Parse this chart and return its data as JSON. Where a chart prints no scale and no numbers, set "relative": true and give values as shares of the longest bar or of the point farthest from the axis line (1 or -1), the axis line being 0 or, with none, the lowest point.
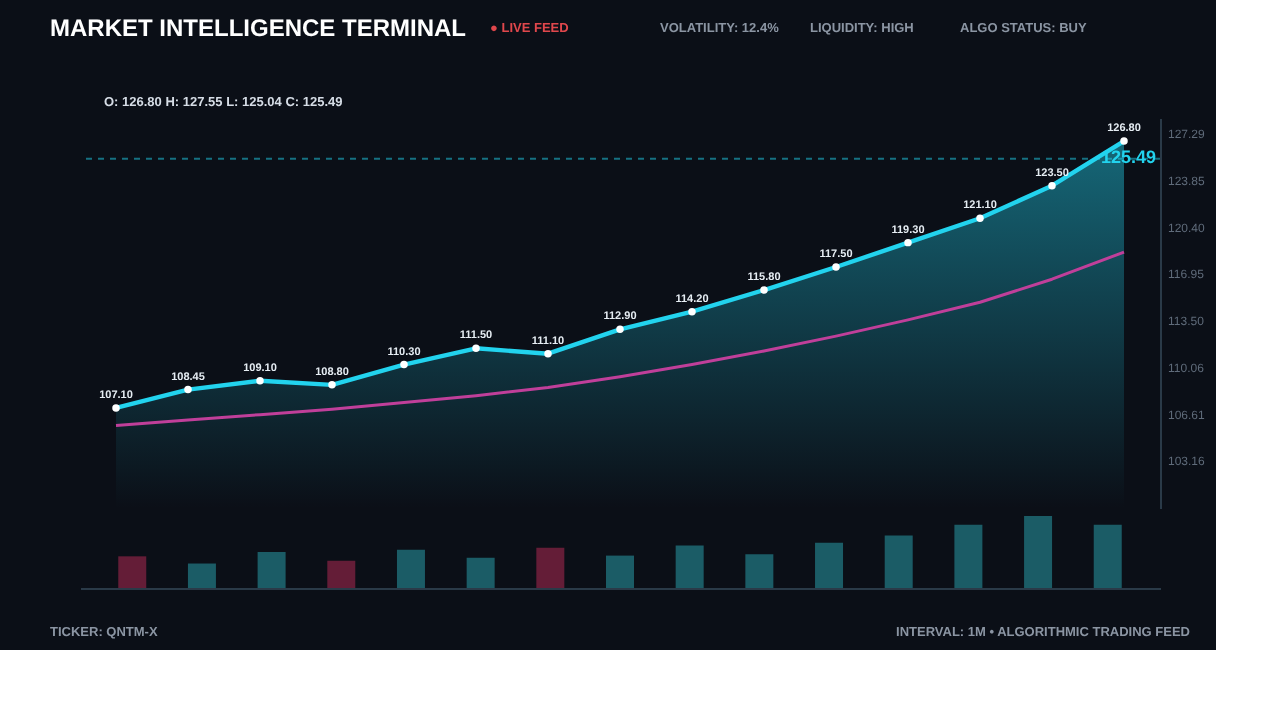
{
  "chart_data": [
    {
      "type": "line",
      "title": "MARKET INTELLIGENCE TERMINAL",
      "annotations": [
        "● LIVE FEED",
        "VOLATILITY: 12.4%",
        "LIQUIDITY: HIGH",
        "ALGO STATUS: BUY",
        "O: 126.80   H: 127.55   L: 125.04   C: 125.49",
        "TICKER: QNTM-X",
        "INTERVAL: 1M • ALGORITHMIC TRADING FEED"
      ],
      "categories": [
        null,
        null,
        null,
        null,
        null,
        null,
        null,
        null,
        null,
        null,
        null,
        null,
        null,
        null,
        null
      ],
      "series": [
        {
          "type": "area",
          "color": "#22d3ee",
          "marker": "circle",
          "values": [
            107.1,
            108.45,
            109.1,
            108.8,
            110.3,
            111.5,
            111.1,
            112.9,
            114.2,
            115.8,
            117.5,
            119.3,
            121.1,
            123.5,
            126.8
          ],
          "value_labels": [
            "107.10",
            "108.45",
            "109.10",
            "108.80",
            "110.30",
            "111.50",
            "111.10",
            "112.90",
            "114.20",
            "115.80",
            "117.50",
            "119.30",
            "121.10",
            "123.50",
            "126.80"
          ]
        },
        {
          "type": "line",
          "color": "#c03f9a",
          "marker": "none",
          "values": [
            105.8,
            106.2,
            106.6,
            107.0,
            107.5,
            108.0,
            108.6,
            109.4,
            110.3,
            111.3,
            112.4,
            113.6,
            114.9,
            116.6,
            118.6
          ]
        }
      ],
      "ylim": [
        99.71,
        128.5
      ],
      "yticks": [
        103.16,
        106.61,
        110.06,
        {
          "value": 113.5,
          "label": "113.50"
        },
        116.95,
        {
          "value": 120.4,
          "label": "120.40"
        },
        123.85,
        127.29
      ],
      "ref_lines": [
        {
          "axis": "y",
          "value": 125.49,
          "label": "125.49",
          "color": "#22d3ee",
          "line_style": "dashed"
        }
      ],
      "grid": false,
      "legend": false,
      "tick_labels": "y"
    },
    {
      "type": "bar",
      "relative": true,
      "categories": [
        null,
        null,
        null,
        null,
        null,
        null,
        null,
        null,
        null,
        null,
        null,
        null,
        null,
        null,
        null
      ],
      "values": [
        0.44,
        0.34,
        0.5,
        0.38,
        0.53,
        0.42,
        0.56,
        0.45,
        0.59,
        0.47,
        0.63,
        0.73,
        0.88,
        1,
        0.88
      ],
      "colors": [
        "#7a2040",
        "#1f6f7a",
        "#1f6f7a",
        "#7a2040",
        "#1f6f7a",
        "#1f6f7a",
        "#7a2040",
        "#1f6f7a",
        "#1f6f7a",
        "#1f6f7a",
        "#1f6f7a",
        "#1f6f7a",
        "#1f6f7a",
        "#1f6f7a",
        "#1f6f7a"
      ],
      "tick_labels": false,
      "grid": false,
      "legend": false
    }
  ]
}
